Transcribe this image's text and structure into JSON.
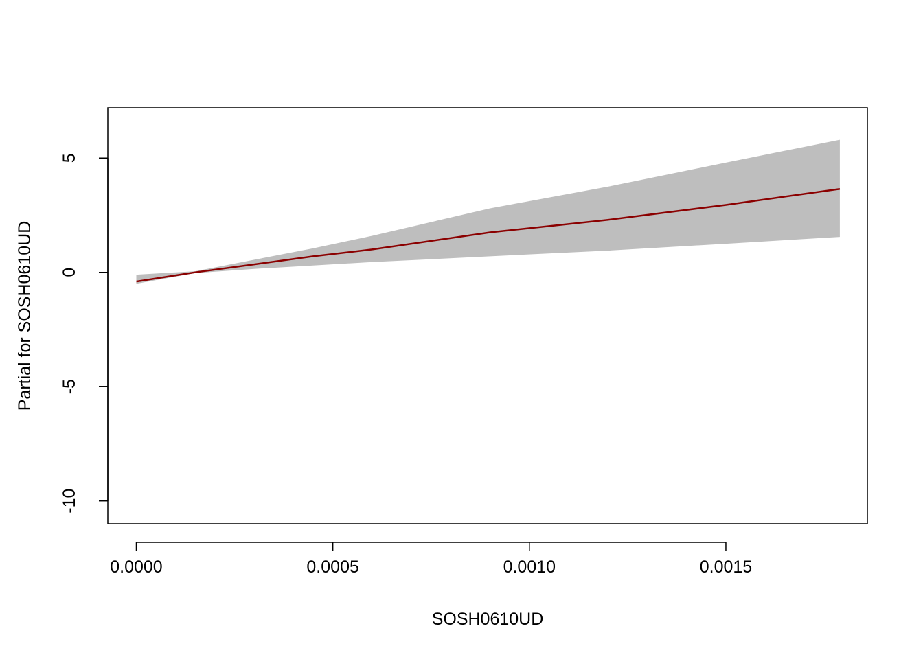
{
  "chart_data": {
    "type": "line",
    "title": "",
    "xlabel": "SOSH0610UD",
    "ylabel": "Partial for SOSH0610UD",
    "xlim": [
      -7.25e-05,
      0.00186
    ],
    "ylim": [
      -11.0,
      7.2
    ],
    "x_ticks": [
      0.0,
      0.0005,
      0.001,
      0.0015
    ],
    "x_tick_labels": [
      "0.0000",
      "0.0005",
      "0.0010",
      "0.0015"
    ],
    "y_ticks": [
      -10,
      -5,
      0,
      5
    ],
    "y_tick_labels": [
      "-10",
      "-5",
      "0",
      "5"
    ],
    "grid": false,
    "colors": {
      "line": "#8b0000",
      "band": "#bebebe",
      "axis": "#000000"
    },
    "series": [
      {
        "x": [
          0.0,
          0.00015,
          0.0003,
          0.00045,
          0.0006,
          0.0009,
          0.0012,
          0.0015,
          0.00179
        ],
        "y": [
          -0.4,
          0.0,
          0.35,
          0.7,
          1.0,
          1.75,
          2.3,
          2.95,
          3.65
        ],
        "lower": [
          -0.5,
          -0.03,
          0.15,
          0.3,
          0.45,
          0.7,
          0.95,
          1.25,
          1.55
        ],
        "upper": [
          -0.1,
          0.05,
          0.55,
          1.05,
          1.6,
          2.8,
          3.75,
          4.8,
          5.8
        ]
      }
    ]
  }
}
